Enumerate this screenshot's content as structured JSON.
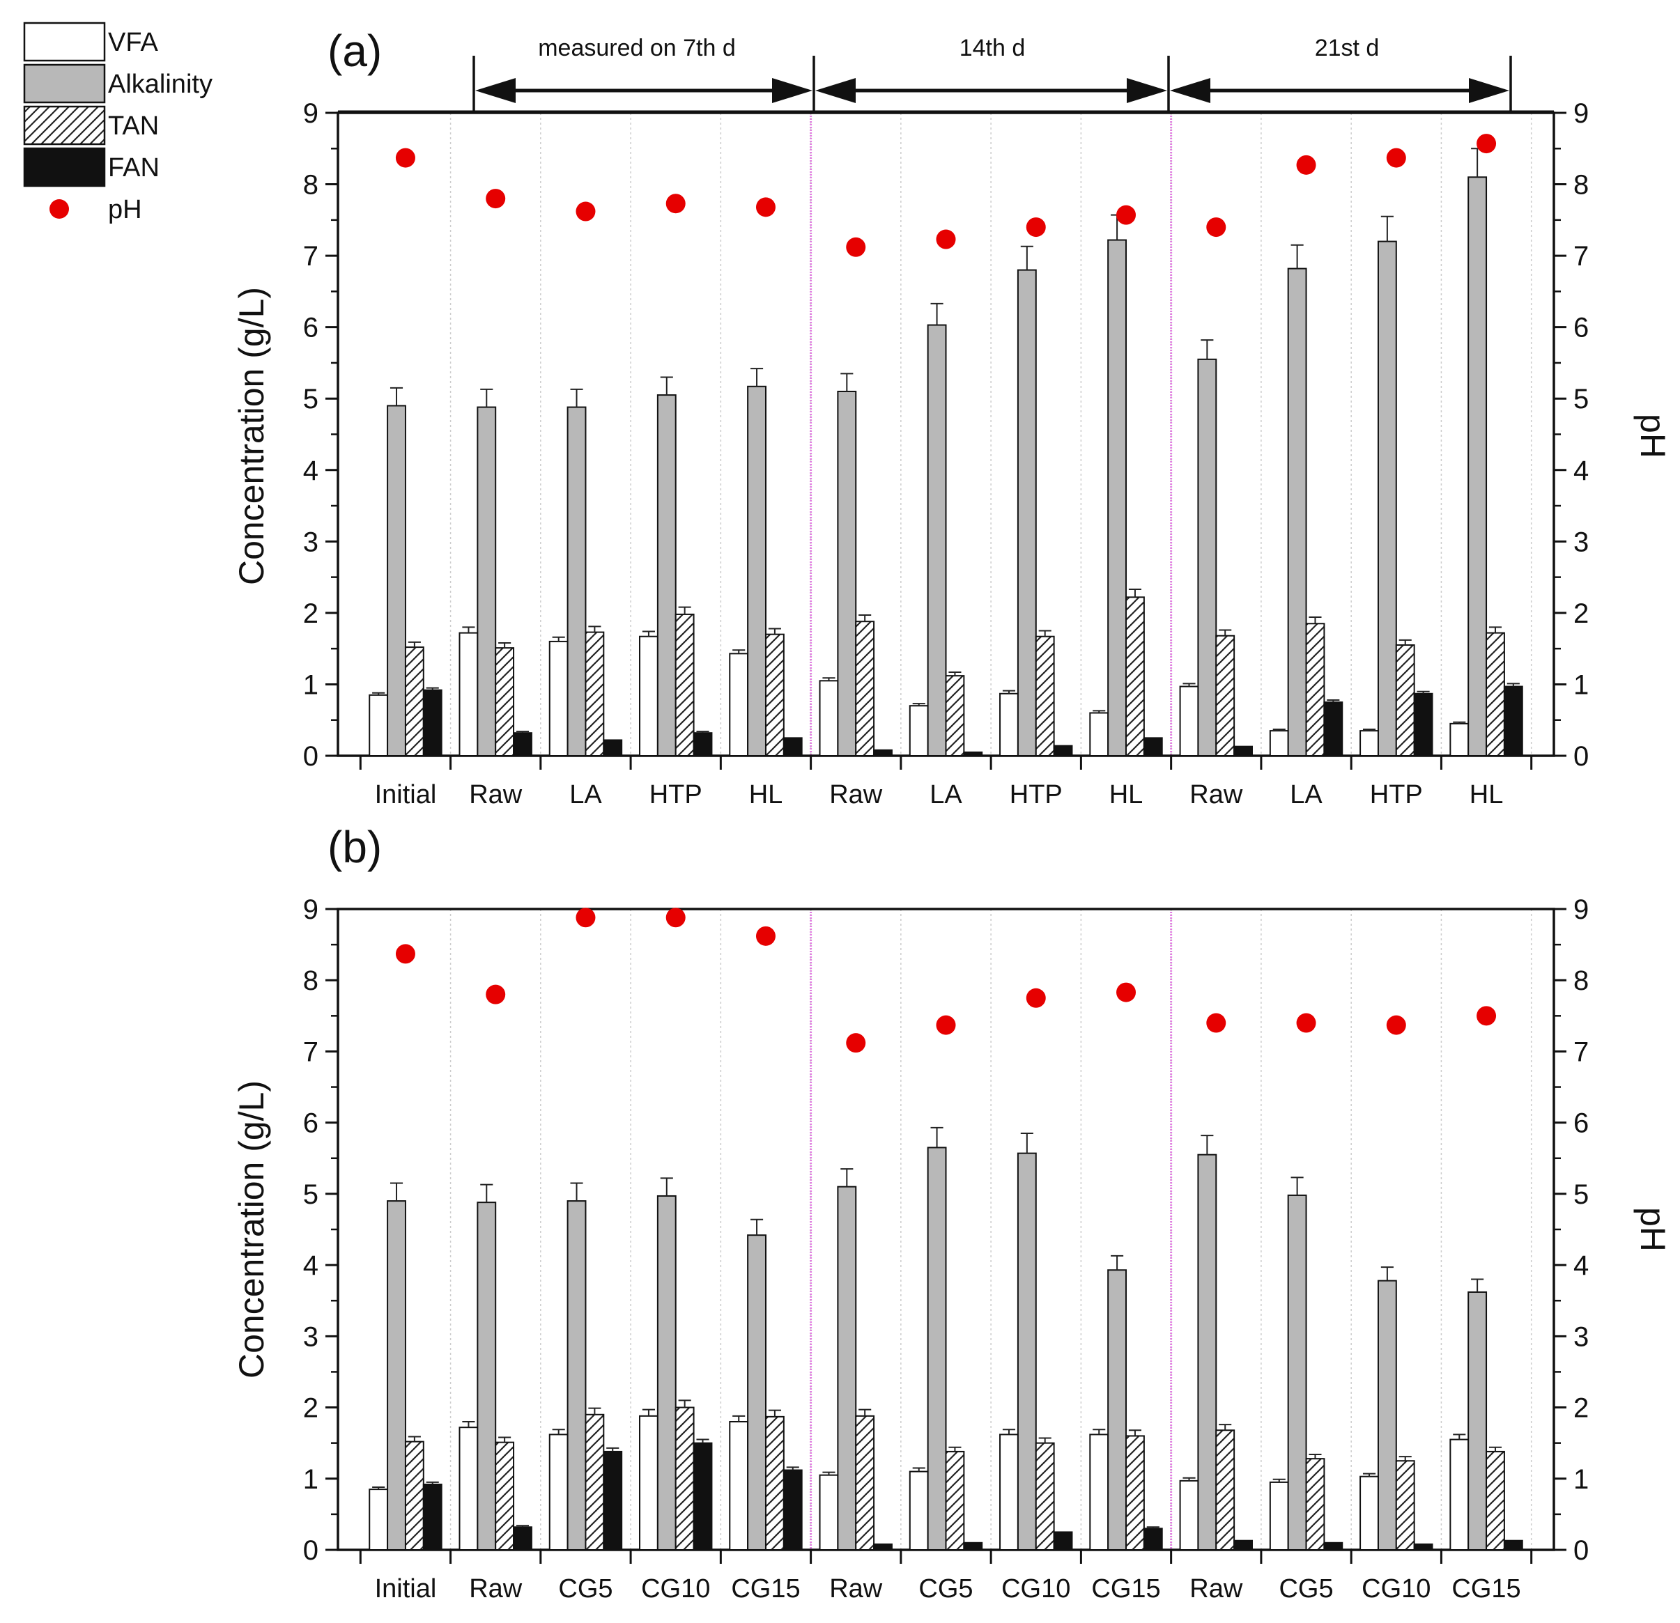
{
  "legend": {
    "items": [
      {
        "key": "vfa",
        "label": "VFA"
      },
      {
        "key": "alk",
        "label": "Alkalinity"
      },
      {
        "key": "tan",
        "label": "TAN"
      },
      {
        "key": "fan",
        "label": "FAN"
      },
      {
        "key": "ph",
        "label": "pH"
      }
    ]
  },
  "colors": {
    "vfa": "#ffffff",
    "alk": "#b8b8b8",
    "fan": "#111111",
    "ph": "#e60000",
    "separator": "#e27ee2",
    "grid": "#cccccc"
  },
  "periods": [
    {
      "label": "measured on 7th d"
    },
    {
      "label": "14th d"
    },
    {
      "label": "21st d"
    }
  ],
  "chart_data": [
    {
      "type": "bar",
      "panel_label": "(a)",
      "ylabel": "Concentration (g/L)",
      "y2label": "pH",
      "ylim": [
        0,
        9
      ],
      "y2lim": [
        0,
        9
      ],
      "yticks": [
        "0",
        "1",
        "2",
        "3",
        "4",
        "5",
        "6",
        "7",
        "8",
        "9"
      ],
      "categories": [
        "Initial",
        "Raw",
        "LA",
        "HTP",
        "HL",
        "Raw",
        "LA",
        "HTP",
        "HL",
        "Raw",
        "LA",
        "HTP",
        "HL"
      ],
      "series": [
        {
          "name": "VFA",
          "key": "vfa",
          "values": [
            0.85,
            1.72,
            1.6,
            1.67,
            1.43,
            1.05,
            0.7,
            0.87,
            0.6,
            0.97,
            0.35,
            0.35,
            0.45
          ],
          "errors": [
            0.03,
            0.08,
            0.06,
            0.07,
            0.05,
            0.04,
            0.03,
            0.04,
            0.03,
            0.04,
            0.02,
            0.02,
            0.02
          ]
        },
        {
          "name": "Alkalinity",
          "key": "alk",
          "values": [
            4.9,
            4.88,
            4.88,
            5.05,
            5.17,
            5.1,
            6.03,
            6.8,
            7.22,
            5.55,
            6.82,
            7.2,
            8.1
          ],
          "errors": [
            0.25,
            0.25,
            0.25,
            0.25,
            0.25,
            0.25,
            0.3,
            0.33,
            0.35,
            0.27,
            0.33,
            0.35,
            0.4
          ]
        },
        {
          "name": "TAN",
          "key": "tan",
          "values": [
            1.52,
            1.51,
            1.73,
            1.98,
            1.7,
            1.88,
            1.12,
            1.67,
            2.22,
            1.68,
            1.85,
            1.55,
            1.72
          ],
          "errors": [
            0.07,
            0.07,
            0.08,
            0.1,
            0.08,
            0.09,
            0.05,
            0.08,
            0.11,
            0.08,
            0.09,
            0.07,
            0.08
          ]
        },
        {
          "name": "FAN",
          "key": "fan",
          "values": [
            0.92,
            0.32,
            0.22,
            0.32,
            0.25,
            0.08,
            0.05,
            0.14,
            0.25,
            0.13,
            0.75,
            0.87,
            0.97
          ],
          "errors": [
            0.03,
            0.02,
            0.01,
            0.02,
            0.01,
            0.01,
            0.01,
            0.01,
            0.01,
            0.01,
            0.03,
            0.03,
            0.04
          ]
        }
      ],
      "pH": [
        8.37,
        7.8,
        7.62,
        7.73,
        7.68,
        7.12,
        7.23,
        7.4,
        7.57,
        7.4,
        8.27,
        8.37,
        8.57
      ]
    },
    {
      "type": "bar",
      "panel_label": "(b)",
      "ylabel": "Concentration (g/L)",
      "y2label": "pH",
      "ylim": [
        0,
        9
      ],
      "y2lim": [
        0,
        9
      ],
      "yticks": [
        "0",
        "1",
        "2",
        "3",
        "4",
        "5",
        "6",
        "7",
        "8",
        "9"
      ],
      "categories": [
        "Initial",
        "Raw",
        "CG5",
        "CG10",
        "CG15",
        "Raw",
        "CG5",
        "CG10",
        "CG15",
        "Raw",
        "CG5",
        "CG10",
        "CG15"
      ],
      "series": [
        {
          "name": "VFA",
          "key": "vfa",
          "values": [
            0.85,
            1.72,
            1.62,
            1.88,
            1.8,
            1.05,
            1.1,
            1.62,
            1.62,
            0.97,
            0.95,
            1.03,
            1.55
          ],
          "errors": [
            0.03,
            0.08,
            0.07,
            0.09,
            0.08,
            0.04,
            0.05,
            0.07,
            0.07,
            0.04,
            0.04,
            0.04,
            0.07
          ]
        },
        {
          "name": "Alkalinity",
          "key": "alk",
          "values": [
            4.9,
            4.88,
            4.9,
            4.97,
            4.42,
            5.1,
            5.65,
            5.57,
            3.93,
            5.55,
            4.98,
            3.78,
            3.62
          ],
          "errors": [
            0.25,
            0.25,
            0.25,
            0.25,
            0.22,
            0.25,
            0.28,
            0.28,
            0.2,
            0.27,
            0.25,
            0.19,
            0.18
          ]
        },
        {
          "name": "TAN",
          "key": "tan",
          "values": [
            1.52,
            1.51,
            1.9,
            2.0,
            1.87,
            1.88,
            1.38,
            1.5,
            1.6,
            1.68,
            1.28,
            1.25,
            1.38
          ],
          "errors": [
            0.07,
            0.07,
            0.09,
            0.1,
            0.09,
            0.09,
            0.06,
            0.07,
            0.08,
            0.08,
            0.06,
            0.06,
            0.06
          ]
        },
        {
          "name": "FAN",
          "key": "fan",
          "values": [
            0.92,
            0.32,
            1.38,
            1.5,
            1.12,
            0.08,
            0.1,
            0.25,
            0.3,
            0.13,
            0.1,
            0.08,
            0.13
          ],
          "errors": [
            0.03,
            0.02,
            0.05,
            0.05,
            0.04,
            0.01,
            0.01,
            0.01,
            0.02,
            0.01,
            0.01,
            0.01,
            0.01
          ]
        }
      ],
      "pH": [
        8.37,
        7.8,
        8.88,
        8.88,
        8.62,
        7.12,
        7.37,
        7.75,
        7.83,
        7.4,
        7.4,
        7.37,
        7.5
      ]
    }
  ]
}
